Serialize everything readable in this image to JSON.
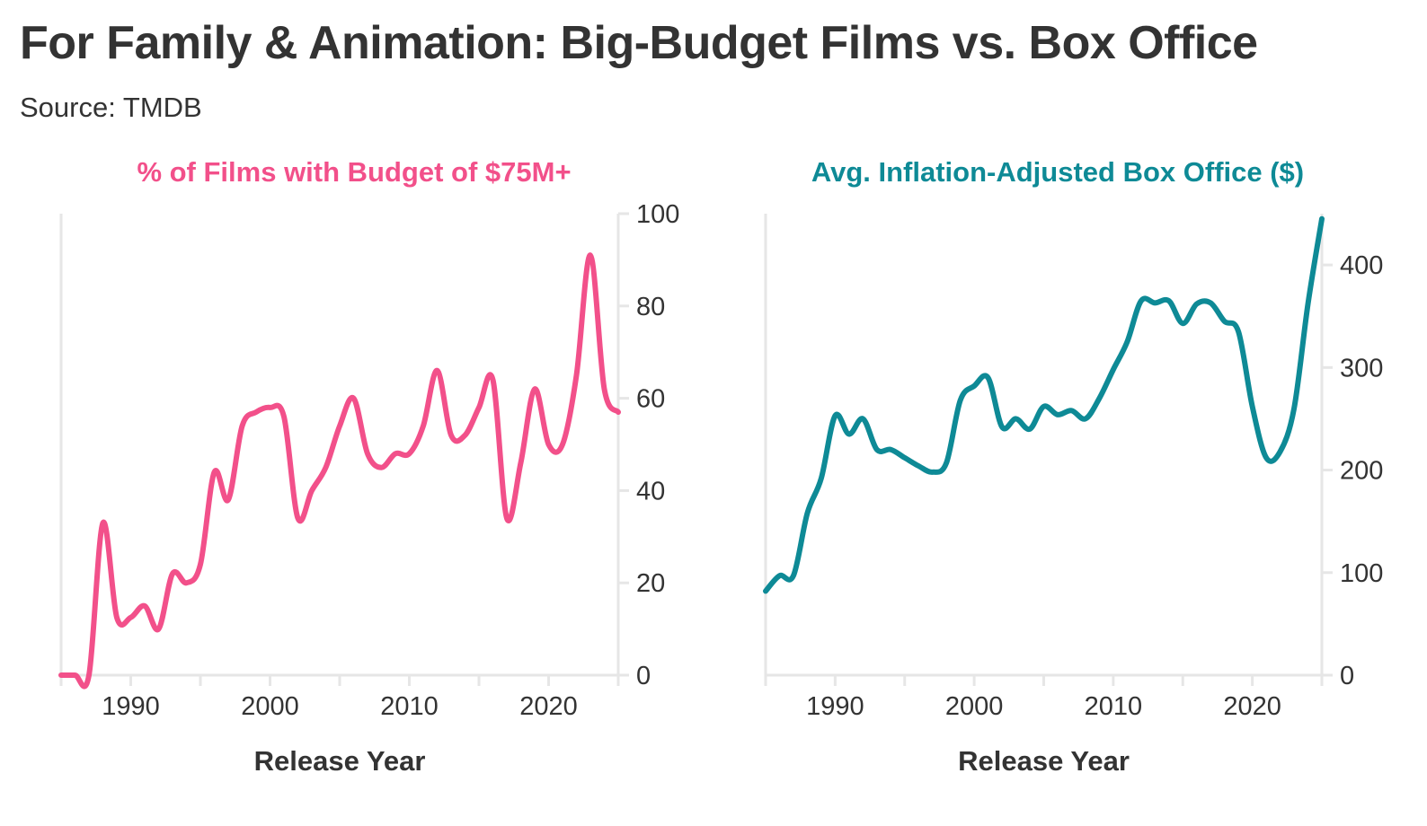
{
  "title": "For Family & Animation: Big-Budget Films vs. Box Office",
  "subtitle": "Source: TMDB",
  "chart_data": [
    {
      "type": "line",
      "title": "% of Films with Budget of $75M+",
      "xlabel": "Release Year",
      "ylabel": "",
      "color": "#F2508A",
      "xlim": [
        1985,
        2025
      ],
      "ylim": [
        0,
        100
      ],
      "xticks": [
        1990,
        2000,
        2010,
        2020
      ],
      "yticks": [
        0,
        20,
        40,
        60,
        80,
        100
      ],
      "y_axis_side": "right",
      "grid": false,
      "x": [
        1985,
        1986,
        1987,
        1988,
        1989,
        1990,
        1991,
        1992,
        1993,
        1994,
        1995,
        1996,
        1997,
        1998,
        1999,
        2000,
        2001,
        2002,
        2003,
        2004,
        2005,
        2006,
        2007,
        2008,
        2009,
        2010,
        2011,
        2012,
        2013,
        2014,
        2015,
        2016,
        2017,
        2018,
        2019,
        2020,
        2021,
        2022,
        2023,
        2024,
        2025
      ],
      "y": [
        0,
        0,
        0,
        33,
        12.5,
        12.5,
        15,
        10,
        22,
        20,
        24,
        44,
        38,
        54,
        57,
        58,
        56,
        34,
        40,
        45,
        54,
        60,
        48,
        45,
        48,
        48,
        54,
        66,
        52,
        52,
        58,
        64,
        34,
        46,
        62,
        50,
        50,
        65,
        91,
        62,
        57
      ]
    },
    {
      "type": "line",
      "title": "Avg. Inflation-Adjusted Box Office ($)",
      "xlabel": "Release Year",
      "ylabel": "",
      "color": "#0E8A96",
      "xlim": [
        1985,
        2025
      ],
      "ylim": [
        0,
        450
      ],
      "xticks": [
        1990,
        2000,
        2010,
        2020
      ],
      "yticks": [
        0,
        100,
        200,
        300,
        400
      ],
      "y_axis_side": "right",
      "grid": false,
      "x": [
        1985,
        1986,
        1987,
        1988,
        1989,
        1990,
        1991,
        1992,
        1993,
        1994,
        1995,
        1996,
        1997,
        1998,
        1999,
        2000,
        2001,
        2002,
        2003,
        2004,
        2005,
        2006,
        2007,
        2008,
        2009,
        2010,
        2011,
        2012,
        2013,
        2014,
        2015,
        2016,
        2017,
        2018,
        2019,
        2020,
        2021,
        2022,
        2023,
        2024,
        2025
      ],
      "y": [
        82,
        97,
        97,
        158,
        192,
        253,
        235,
        250,
        220,
        220,
        212,
        204,
        198,
        207,
        268,
        282,
        290,
        242,
        250,
        240,
        262,
        254,
        258,
        250,
        270,
        298,
        325,
        365,
        363,
        365,
        343,
        362,
        363,
        345,
        335,
        262,
        212,
        218,
        260,
        362,
        445
      ]
    }
  ]
}
